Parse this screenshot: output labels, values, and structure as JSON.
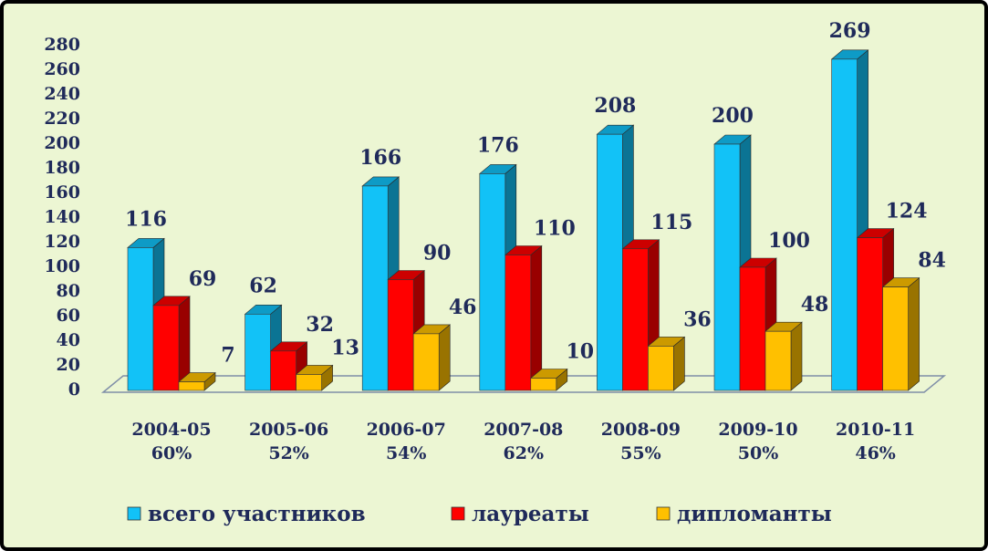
{
  "chart_data": {
    "type": "bar3d",
    "categories": [
      "2004-05",
      "2005-06",
      "2006-07",
      "2007-08",
      "2008-09",
      "2009-10",
      "2010-11"
    ],
    "category_shares": [
      "60%",
      "52%",
      "54%",
      "62%",
      "55%",
      "50%",
      "46%"
    ],
    "series": [
      {
        "name": "всего участников",
        "color": "#12c2f7",
        "values": [
          116,
          62,
          166,
          176,
          208,
          200,
          269
        ]
      },
      {
        "name": "лауреаты",
        "color": "#ff0000",
        "values": [
          69,
          32,
          90,
          110,
          115,
          100,
          124
        ]
      },
      {
        "name": "дипломанты",
        "color": "#ffc000",
        "values": [
          7,
          13,
          46,
          10,
          36,
          48,
          84
        ]
      }
    ],
    "ylim": [
      0,
      280
    ],
    "yticks": [
      0,
      20,
      40,
      60,
      80,
      100,
      120,
      140,
      160,
      180,
      200,
      220,
      240,
      260,
      280
    ],
    "legend": "bottom"
  }
}
